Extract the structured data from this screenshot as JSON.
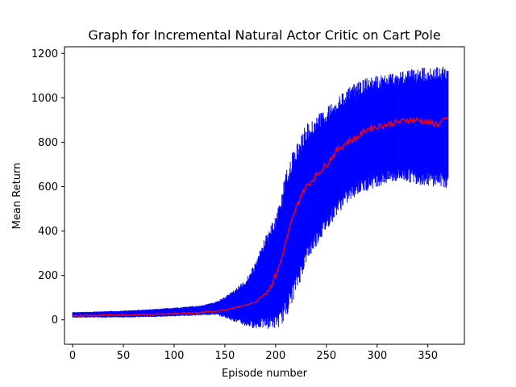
{
  "chart_data": {
    "type": "line",
    "title": "Graph for Incremental Natural Actor Critic on Cart Pole",
    "xlabel": "Episode number",
    "ylabel": "Mean Return",
    "xlim": [
      -8,
      386
    ],
    "ylim": [
      -110,
      1230
    ],
    "xticks": [
      0,
      50,
      100,
      150,
      200,
      250,
      300,
      350
    ],
    "yticks": [
      0,
      200,
      400,
      600,
      800,
      1000,
      1200
    ],
    "grid": false,
    "legend": "none",
    "series": [
      {
        "kind": "error-band",
        "color": "#0000ff",
        "x": [
          0,
          25,
          50,
          75,
          100,
          125,
          140,
          150,
          160,
          170,
          180,
          190,
          200,
          205,
          210,
          215,
          220,
          225,
          230,
          240,
          250,
          260,
          270,
          280,
          290,
          300,
          310,
          320,
          330,
          340,
          350,
          360,
          370
        ],
        "upper": [
          35,
          38,
          42,
          48,
          55,
          65,
          80,
          105,
          140,
          180,
          260,
          380,
          470,
          560,
          660,
          740,
          790,
          830,
          880,
          920,
          960,
          1000,
          1040,
          1070,
          1090,
          1100,
          1110,
          1120,
          1130,
          1135,
          1140,
          1140,
          1145
        ],
        "lower": [
          10,
          10,
          10,
          12,
          15,
          20,
          22,
          10,
          -10,
          -30,
          -40,
          -40,
          -40,
          -30,
          10,
          60,
          120,
          180,
          250,
          330,
          400,
          470,
          520,
          560,
          580,
          600,
          610,
          620,
          620,
          610,
          600,
          600,
          590
        ]
      },
      {
        "kind": "mean",
        "color": "#ff0000",
        "x": [
          0,
          25,
          50,
          75,
          100,
          125,
          140,
          150,
          160,
          170,
          180,
          190,
          195,
          200,
          205,
          210,
          215,
          220,
          225,
          230,
          240,
          250,
          260,
          270,
          280,
          290,
          300,
          310,
          320,
          330,
          340,
          350,
          360,
          370
        ],
        "y": [
          18,
          20,
          22,
          24,
          28,
          32,
          38,
          45,
          55,
          65,
          80,
          120,
          150,
          200,
          260,
          350,
          430,
          500,
          560,
          600,
          650,
          700,
          760,
          800,
          820,
          860,
          870,
          880,
          890,
          900,
          900,
          890,
          880,
          910
        ]
      }
    ]
  }
}
